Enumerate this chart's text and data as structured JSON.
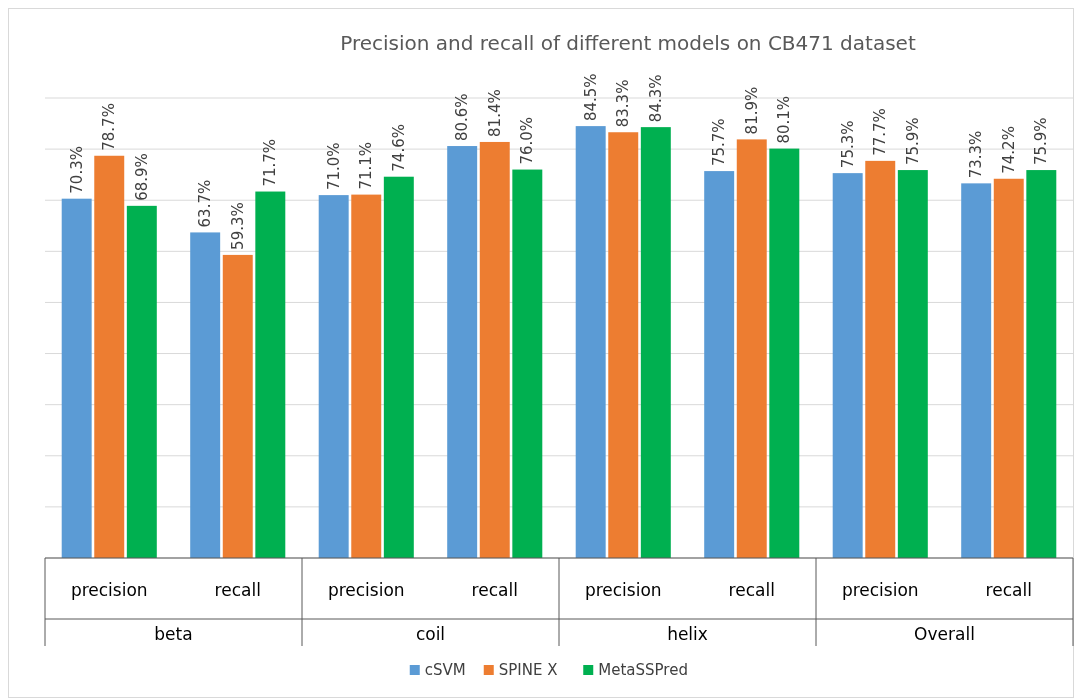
{
  "chart_data": {
    "type": "bar",
    "title": "Precision and recall of different models on CB471 dataset",
    "categories": [
      "precision",
      "recall",
      "precision",
      "recall",
      "precision",
      "recall",
      "precision",
      "recall"
    ],
    "annotations": [
      "beta",
      "coil",
      "helix",
      "Overall"
    ],
    "series": [
      {
        "name": "cSVM",
        "color": "#5b9bd5",
        "values": [
          70.3,
          63.7,
          71.0,
          80.6,
          84.5,
          75.7,
          75.3,
          73.3
        ],
        "value_labels": [
          "70.3%",
          "63.7%",
          "71.0%",
          "80.6%",
          "84.5%",
          "75.7%",
          "75.3%",
          "73.3%"
        ]
      },
      {
        "name": "SPINE X",
        "color": "#ed7d31",
        "values": [
          78.7,
          59.3,
          71.1,
          81.4,
          83.3,
          81.9,
          77.7,
          74.2
        ],
        "value_labels": [
          "78.7%",
          "59.3%",
          "71.1%",
          "81.4%",
          "83.3%",
          "81.9%",
          "77.7%",
          "74.2%"
        ]
      },
      {
        "name": "MetaSSPred",
        "color": "#00b050",
        "values": [
          68.9,
          71.7,
          74.6,
          76.0,
          84.3,
          80.1,
          75.9,
          75.9
        ],
        "value_labels": [
          "68.9%",
          "71.7%",
          "74.6%",
          "76.0%",
          "84.3%",
          "80.1%",
          "75.9%",
          "75.9%"
        ]
      }
    ],
    "ylim": [
      0,
      90
    ],
    "yticks": [
      {
        "value": 0,
        "label": null
      },
      {
        "value": 10,
        "label": null
      },
      {
        "value": 20,
        "label": null
      },
      {
        "value": 30,
        "label": null
      },
      {
        "value": 40,
        "label": null
      },
      {
        "value": 50,
        "label": null
      },
      {
        "value": 60,
        "label": null
      },
      {
        "value": 70,
        "label": null
      },
      {
        "value": 80,
        "label": null
      },
      {
        "value": 90,
        "label": null
      }
    ],
    "tick_labels": "x",
    "grid": "y",
    "legend": "bottom"
  }
}
